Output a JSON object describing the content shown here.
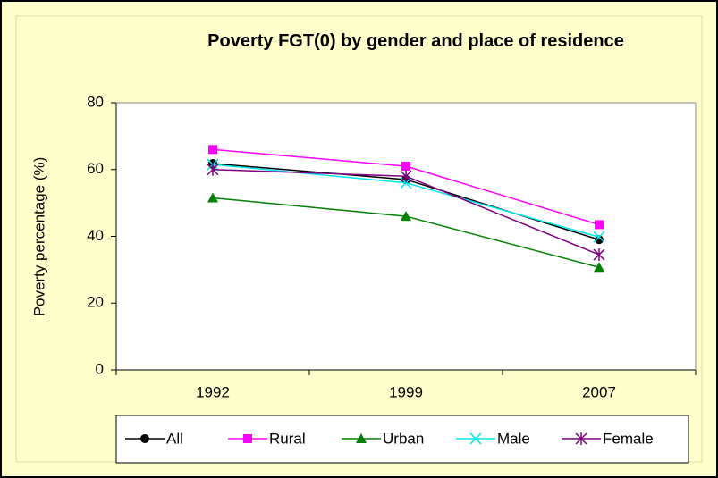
{
  "chart_data": {
    "type": "line",
    "title": "Poverty FGT(0) by gender and place of residence",
    "y_label": "Poverty percentage (%)",
    "categories": [
      "1992",
      "1999",
      "2007"
    ],
    "series": [
      {
        "name": "All",
        "color": "#000000",
        "marker": "circle",
        "values": [
          61.8,
          57,
          39
        ]
      },
      {
        "name": "Rural",
        "color": "#ff00ff",
        "marker": "square",
        "values": [
          66,
          61,
          43.5
        ]
      },
      {
        "name": "Urban",
        "color": "#008000",
        "marker": "triangle",
        "values": [
          51.5,
          46,
          30.7
        ]
      },
      {
        "name": "Male",
        "color": "#00e5ee",
        "marker": "x",
        "values": [
          61.5,
          56,
          39.8
        ]
      },
      {
        "name": "Female",
        "color": "#800080",
        "marker": "star",
        "values": [
          60,
          58,
          34.5
        ]
      }
    ],
    "ylim": [
      0,
      80
    ],
    "yticks": [
      0,
      20,
      40,
      60,
      80
    ],
    "grid": false,
    "legend": "bottom"
  }
}
